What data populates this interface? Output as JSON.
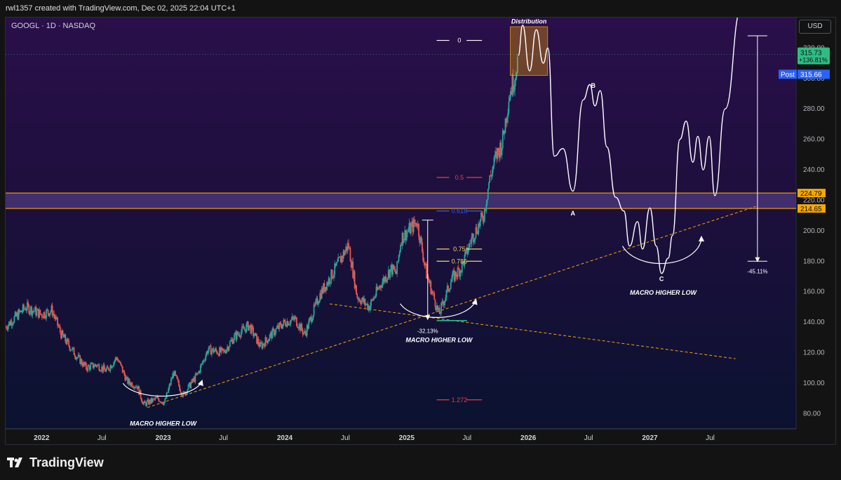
{
  "header": {
    "attribution": "rwl1357 created with TradingView.com, Dec 02, 2025 22:04 UTC+1"
  },
  "brand": {
    "name": "TradingView",
    "icon": "tradingview-logo-icon"
  },
  "chart_data": {
    "type": "line",
    "title": "GOOGL · 1D · NASDAQ",
    "currency": "USD",
    "x_ticks": [
      "2022",
      "Jul",
      "2023",
      "Jul",
      "2024",
      "Jul",
      "2025",
      "Jul",
      "2026",
      "Jul",
      "2027",
      "Jul"
    ],
    "y_ticks": [
      80,
      100,
      120,
      140,
      160,
      180,
      200,
      220,
      240,
      260,
      280,
      300,
      320
    ],
    "ylim": [
      70,
      340
    ],
    "xlim": [
      "2021-09-15",
      "2028-03-15"
    ],
    "price_history": [
      [
        "2021-09-15",
        137
      ],
      [
        "2021-11-15",
        150
      ],
      [
        "2022-01-01",
        145
      ],
      [
        "2022-02-01",
        148
      ],
      [
        "2022-03-01",
        132
      ],
      [
        "2022-04-15",
        118
      ],
      [
        "2022-05-15",
        110
      ],
      [
        "2022-06-15",
        112
      ],
      [
        "2022-07-15",
        108
      ],
      [
        "2022-08-15",
        117
      ],
      [
        "2022-09-15",
        101
      ],
      [
        "2022-10-15",
        98
      ],
      [
        "2022-11-03",
        86
      ],
      [
        "2022-12-15",
        90
      ],
      [
        "2023-01-05",
        87
      ],
      [
        "2023-02-01",
        107
      ],
      [
        "2023-03-01",
        92
      ],
      [
        "2023-04-15",
        106
      ],
      [
        "2023-05-15",
        122
      ],
      [
        "2023-07-01",
        120
      ],
      [
        "2023-08-01",
        130
      ],
      [
        "2023-09-15",
        138
      ],
      [
        "2023-10-20",
        124
      ],
      [
        "2023-12-01",
        134
      ],
      [
        "2024-01-01",
        140
      ],
      [
        "2024-02-01",
        142
      ],
      [
        "2024-03-01",
        132
      ],
      [
        "2024-04-15",
        158
      ],
      [
        "2024-06-01",
        175
      ],
      [
        "2024-07-10",
        191
      ],
      [
        "2024-08-05",
        157
      ],
      [
        "2024-09-10",
        150
      ],
      [
        "2024-10-15",
        165
      ],
      [
        "2024-11-15",
        175
      ],
      [
        "2024-12-01",
        172
      ],
      [
        "2024-12-15",
        195
      ],
      [
        "2025-02-01",
        206
      ],
      [
        "2025-03-01",
        172
      ],
      [
        "2025-04-08",
        145
      ],
      [
        "2025-05-15",
        168
      ],
      [
        "2025-06-15",
        176
      ],
      [
        "2025-07-15",
        195
      ],
      [
        "2025-08-20",
        210
      ],
      [
        "2025-09-05",
        232
      ],
      [
        "2025-09-25",
        248
      ],
      [
        "2025-10-15",
        258
      ],
      [
        "2025-11-05",
        290
      ],
      [
        "2025-11-20",
        300
      ],
      [
        "2025-12-02",
        315.73
      ]
    ],
    "projection": [
      [
        "2025-12-02",
        315
      ],
      [
        "2025-12-15",
        335
      ],
      [
        "2026-01-05",
        305
      ],
      [
        "2026-01-25",
        332
      ],
      [
        "2026-02-15",
        310
      ],
      [
        "2026-03-01",
        320
      ],
      [
        "2026-03-20",
        249
      ],
      [
        "2026-04-15",
        254
      ],
      [
        "2026-05-15",
        226
      ],
      [
        "2026-06-15",
        286
      ],
      [
        "2026-07-05",
        296
      ],
      [
        "2026-07-20",
        282
      ],
      [
        "2026-08-05",
        292
      ],
      [
        "2026-08-25",
        255
      ],
      [
        "2026-09-20",
        222
      ],
      [
        "2026-10-15",
        213
      ],
      [
        "2026-11-01",
        190
      ],
      [
        "2026-11-25",
        206
      ],
      [
        "2026-12-10",
        188
      ],
      [
        "2027-01-01",
        215
      ],
      [
        "2027-01-20",
        190
      ],
      [
        "2027-02-05",
        172
      ],
      [
        "2027-02-25",
        182
      ],
      [
        "2027-03-10",
        197
      ],
      [
        "2027-04-01",
        260
      ],
      [
        "2027-04-20",
        272
      ],
      [
        "2027-05-10",
        245
      ],
      [
        "2027-05-25",
        262
      ],
      [
        "2027-06-10",
        240
      ],
      [
        "2027-06-28",
        262
      ],
      [
        "2027-07-15",
        223
      ],
      [
        "2027-08-15",
        280
      ],
      [
        "2027-10-01",
        345
      ]
    ],
    "levels": [
      {
        "price": 224.79,
        "label": "224.79",
        "color": "#f7a600"
      },
      {
        "price": 214.65,
        "label": "214.65",
        "color": "#f7a600"
      }
    ],
    "last_price": {
      "value": "315.73",
      "change": "+136.81%",
      "color": "#2dbd85"
    },
    "post_price": {
      "tag": "Post",
      "value": "315.66",
      "color": "#2962ff"
    },
    "fib_levels": [
      {
        "label": "0",
        "price": 325,
        "color": "#ffffff"
      },
      {
        "label": "0.5",
        "price": 235,
        "color": "#f23645"
      },
      {
        "label": "0.618",
        "price": 213,
        "color": "#2962ff"
      },
      {
        "label": "0.75",
        "price": 188,
        "color": "#f7d46a"
      },
      {
        "label": "0.786",
        "price": 180,
        "color": "#f7d46a"
      },
      {
        "label": "1.272",
        "price": 89,
        "color": "#f23645"
      }
    ],
    "annotations": [
      {
        "id": "distribution",
        "text": "Distribution"
      },
      {
        "id": "wave-a",
        "text": "A"
      },
      {
        "id": "wave-b",
        "text": "B"
      },
      {
        "id": "wave-c",
        "text": "C"
      },
      {
        "id": "macro-low-1",
        "text": "MACRO HIGHER LOW"
      },
      {
        "id": "macro-low-2",
        "text": "MACRO HIGHER LOW"
      },
      {
        "id": "macro-low-3",
        "text": "MACRO HIGHER LOW"
      },
      {
        "id": "drop-1",
        "text": "-32.13%"
      },
      {
        "id": "drop-2",
        "text": "-45.11%"
      }
    ],
    "colors": {
      "bull": "#26a69a",
      "bear": "#ef5350",
      "projection": "#ffffff",
      "trendline": "#f7a600",
      "zone_fill": "#f7a600",
      "band_fill": "#b388ff"
    }
  }
}
